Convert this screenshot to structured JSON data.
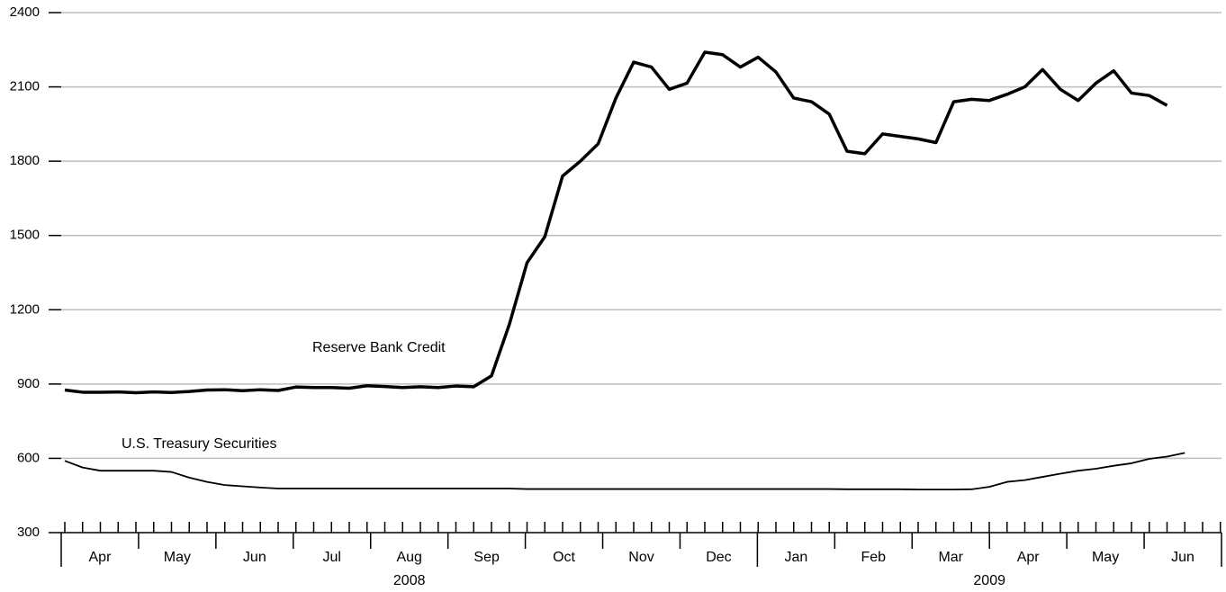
{
  "chart_data": {
    "type": "line",
    "ylim": [
      300,
      2400
    ],
    "yticks": [
      300,
      600,
      900,
      1200,
      1500,
      1800,
      2100,
      2400
    ],
    "grid": true,
    "months": [
      "Apr",
      "May",
      "Jun",
      "Jul",
      "Aug",
      "Sep",
      "Oct",
      "Nov",
      "Dec",
      "Jan",
      "Feb",
      "Mar",
      "Apr",
      "May",
      "Jun"
    ],
    "years": [
      "2008",
      "2009"
    ],
    "series": [
      {
        "name": "Reserve Bank Credit",
        "color": "#000000",
        "values": [
          876,
          867,
          867,
          868,
          865,
          868,
          866,
          870,
          876,
          877,
          873,
          877,
          874,
          888,
          886,
          886,
          883,
          893,
          890,
          886,
          889,
          886,
          892,
          889,
          933,
          1140,
          1390,
          1495,
          1740,
          1800,
          1870,
          2055,
          2200,
          2180,
          2090,
          2115,
          2240,
          2230,
          2180,
          2220,
          2160,
          2055,
          2040,
          1990,
          1840,
          1830,
          1910,
          1900,
          1890,
          1875,
          2040,
          2050,
          2045,
          2070,
          2100,
          2170,
          2090,
          2045,
          2115,
          2165,
          2075,
          2065,
          2025
        ]
      },
      {
        "name": "U.S. Treasury Securities",
        "color": "#000000",
        "values": [
          590,
          563,
          550,
          550,
          550,
          550,
          545,
          522,
          505,
          492,
          487,
          482,
          478,
          478,
          478,
          478,
          478,
          478,
          478,
          478,
          478,
          478,
          478,
          478,
          478,
          478,
          476,
          476,
          476,
          476,
          476,
          476,
          476,
          476,
          476,
          476,
          476,
          476,
          476,
          476,
          476,
          476,
          476,
          476,
          475,
          475,
          475,
          475,
          474,
          474,
          474,
          475,
          485,
          505,
          512,
          525,
          538,
          550,
          558,
          570,
          580,
          598,
          607,
          622
        ]
      }
    ]
  }
}
